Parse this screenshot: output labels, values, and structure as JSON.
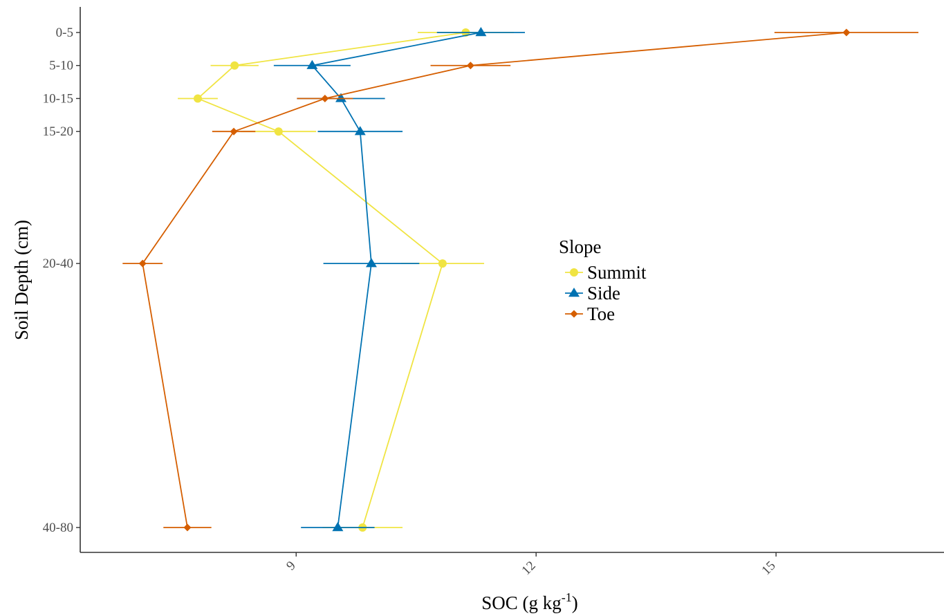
{
  "chart_data": {
    "type": "line",
    "xlabel": "SOC (g kg",
    "xlabel_sup": "-1",
    "xlabel_end": ")",
    "ylabel": "Soil Depth (cm)",
    "xlim": [
      6.3,
      17.1
    ],
    "x_ticks": [
      "9",
      "12",
      "15"
    ],
    "y_categories": [
      "0-5",
      "5-10",
      "10-15",
      "15-20",
      "20-40",
      "40-80"
    ],
    "y_depths": [
      2.5,
      7.5,
      12.5,
      17.5,
      37.5,
      77.5
    ],
    "grid": false,
    "legend": {
      "title": "Slope",
      "position": "center-right"
    },
    "series": [
      {
        "name": "Summit",
        "color": "#F0E442",
        "marker": "circle",
        "x": [
          11.12,
          8.23,
          7.77,
          8.78,
          10.83,
          9.83
        ],
        "xerr": [
          0.6,
          0.3,
          0.25,
          0.47,
          0.52,
          0.5
        ]
      },
      {
        "name": "Side",
        "color": "#0072B2",
        "marker": "triangle",
        "x": [
          11.31,
          9.2,
          9.56,
          9.8,
          9.94,
          9.52
        ],
        "xerr": [
          0.55,
          0.48,
          0.55,
          0.53,
          0.6,
          0.46
        ]
      },
      {
        "name": "Toe",
        "color": "#D55E00",
        "marker": "diamond",
        "x": [
          15.88,
          11.18,
          9.36,
          8.22,
          7.08,
          7.64
        ],
        "xerr": [
          0.9,
          0.5,
          0.35,
          0.27,
          0.25,
          0.3
        ]
      }
    ]
  }
}
